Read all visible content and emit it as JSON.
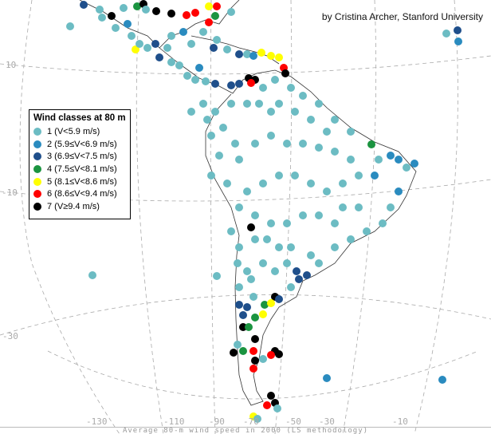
{
  "credit": "by Cristina Archer, Stanford University",
  "legend": {
    "title": "Wind classes at 80 m",
    "classes": [
      {
        "label": "1 (V<5.9 m/s)",
        "color": "#6cbcc3"
      },
      {
        "label": "2 (5.9≤V<6.9 m/s)",
        "color": "#2a8bbf"
      },
      {
        "label": "3 (6.9≤V<7.5 m/s)",
        "color": "#1f4f8b"
      },
      {
        "label": "4 (7.5≤V<8.1 m/s)",
        "color": "#1b9440"
      },
      {
        "label": "5 (8.1≤V<8.6 m/s)",
        "color": "#ffff00"
      },
      {
        "label": "6 (8.6≤V<9.4 m/s)",
        "color": "#ff0000"
      },
      {
        "label": "7 (V≥9.4 m/s)",
        "color": "#000000"
      }
    ]
  },
  "axes": {
    "longitude_labels": [
      "-130",
      "-110",
      "-90",
      "-70",
      "-50",
      "-30",
      "-10"
    ],
    "latitude_labels": [
      "10",
      "-10",
      "-30"
    ]
  },
  "footer": "Average 80-m wind speed in 2000 (LS methodology)"
}
